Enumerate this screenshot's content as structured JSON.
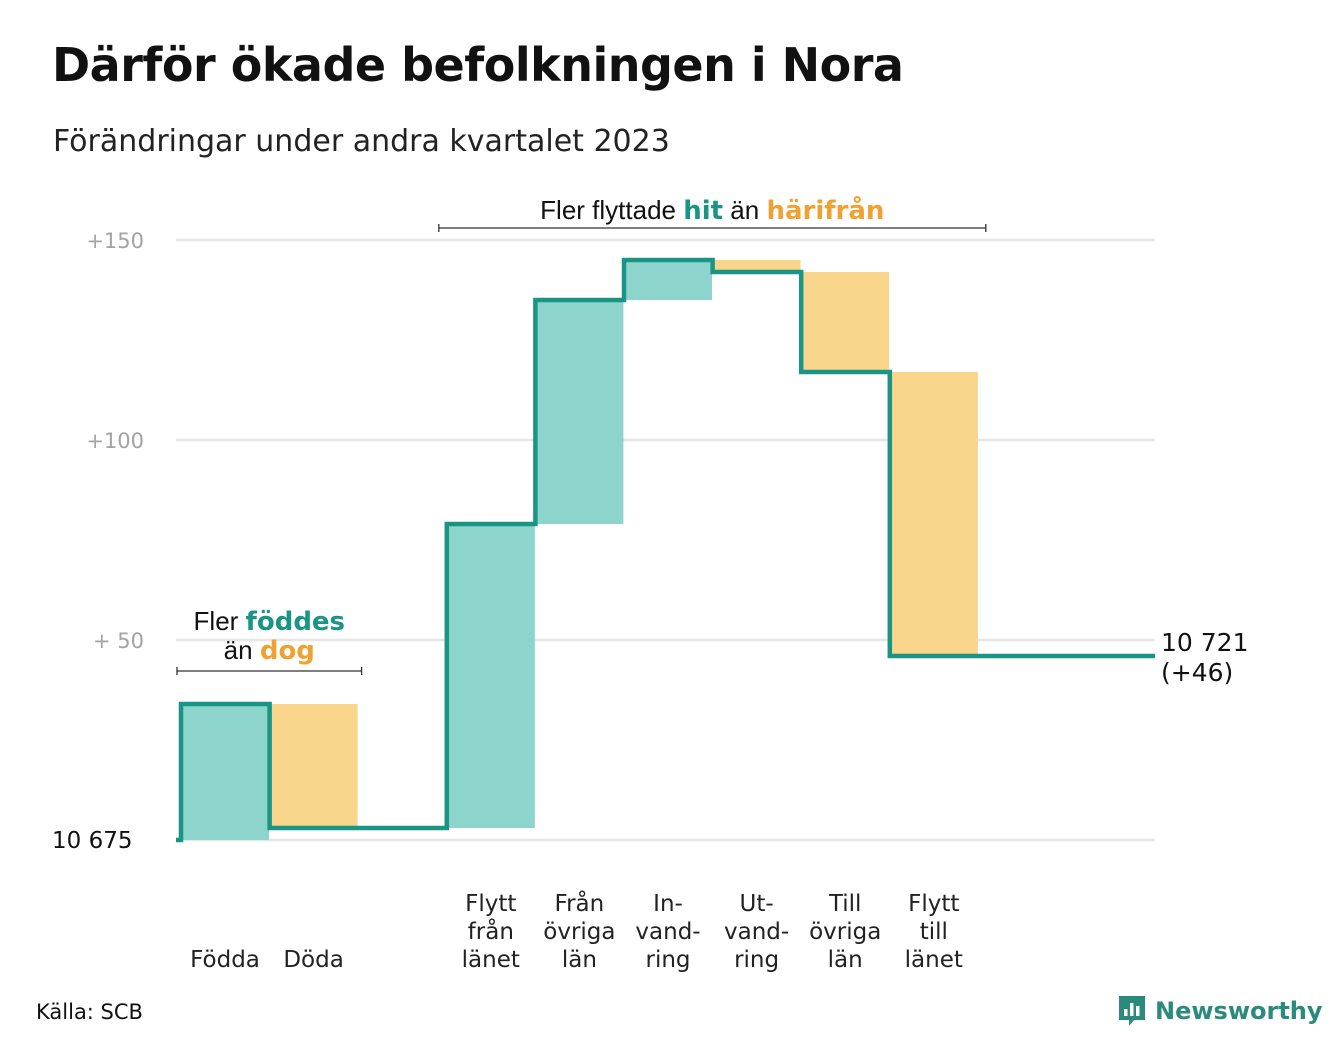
{
  "title": "Därför ökade befolkningen i Nora",
  "subtitle": "Förändringar under andra kvartalet 2023",
  "source": "Källa: SCB",
  "brand": "Newsworthy",
  "colors": {
    "inflow": "#8dd4cc",
    "outflow": "#f9d48b",
    "line": "#1a9485",
    "grid": "#e6e6e6",
    "accent_green": "#1a9485",
    "accent_orange": "#efa231"
  },
  "chart_data": {
    "type": "waterfall",
    "base_label": "10  675",
    "ylim": [
      0,
      150
    ],
    "yticks": [
      {
        "value": 150,
        "label": "+150"
      },
      {
        "value": 100,
        "label": "+100"
      },
      {
        "value": 50,
        "label": "+  50"
      }
    ],
    "steps": [
      {
        "lines": [
          "Födda"
        ],
        "change": 34
      },
      {
        "lines": [
          "Döda"
        ],
        "change": -31
      },
      {
        "lines": [],
        "change": 0
      },
      {
        "lines": [
          "Flytt",
          "från",
          "länet"
        ],
        "change": 76
      },
      {
        "lines": [
          "Från",
          "övriga",
          "län"
        ],
        "change": 56
      },
      {
        "lines": [
          "In-",
          "vand-",
          "ring"
        ],
        "change": 10
      },
      {
        "lines": [
          "Ut-",
          "vand-",
          "ring"
        ],
        "change": -3
      },
      {
        "lines": [
          "Till",
          "övriga",
          "län"
        ],
        "change": -25
      },
      {
        "lines": [
          "Flytt",
          "till",
          "länet"
        ],
        "change": -71
      }
    ],
    "end_label": [
      "10 721",
      "(+46)"
    ],
    "annotations": [
      {
        "id": "births",
        "line1": [
          {
            "text": "Fler ",
            "style": "plain"
          },
          {
            "text": "föddes",
            "style": "green"
          }
        ],
        "line2": [
          {
            "text": "än ",
            "style": "plain"
          },
          {
            "text": "dog",
            "style": "orange"
          }
        ],
        "span_steps": [
          0,
          1
        ]
      },
      {
        "id": "migration",
        "line1": [
          {
            "text": "Fler flyttade ",
            "style": "plain"
          },
          {
            "text": "hit",
            "style": "green"
          },
          {
            "text": " än ",
            "style": "plain"
          },
          {
            "text": "härifrån",
            "style": "orange"
          }
        ],
        "span_steps": [
          3,
          8
        ]
      }
    ]
  }
}
